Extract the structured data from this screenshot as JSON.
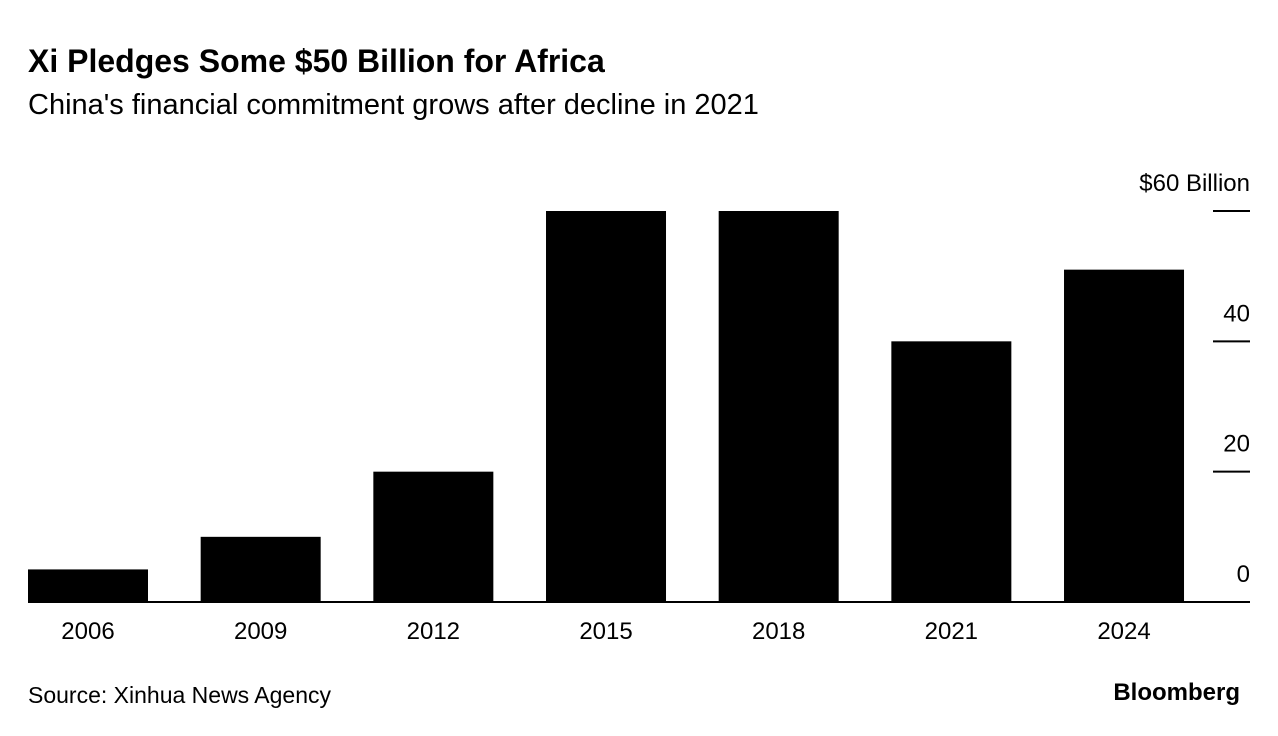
{
  "chart_data": {
    "type": "bar",
    "title": "Xi Pledges Some $50 Billion for Africa",
    "subtitle": "China's financial commitment grows after decline in 2021",
    "categories": [
      "2006",
      "2009",
      "2012",
      "2015",
      "2018",
      "2021",
      "2024"
    ],
    "values": [
      5,
      10,
      20,
      60,
      60,
      40,
      51
    ],
    "color": "#000000",
    "ylim": [
      0,
      60
    ],
    "yticks": [
      0,
      20,
      40,
      {
        "value": 60,
        "label": "$60 Billion"
      }
    ],
    "source": "Source: Xinhua News Agency",
    "logo": "Bloomberg"
  }
}
